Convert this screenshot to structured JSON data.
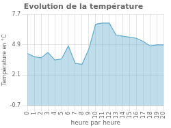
{
  "chart_data": {
    "type": "area",
    "title": "Evolution de la température",
    "x_label": "heure par heure",
    "y_label": "Température en °C",
    "x": [
      0,
      1,
      2,
      3,
      4,
      5,
      6,
      7,
      8,
      9,
      10,
      11,
      12,
      13,
      14,
      15,
      16,
      17,
      18,
      19,
      20
    ],
    "values": [
      4.1,
      3.8,
      3.7,
      4.2,
      3.5,
      3.6,
      4.8,
      3.2,
      3.1,
      4.5,
      6.8,
      6.9,
      6.9,
      5.8,
      5.7,
      5.6,
      5.5,
      5.2,
      4.8,
      4.9,
      4.9
    ],
    "color": "#60aacc",
    "xlim": [
      0,
      20
    ],
    "xticks": [
      0,
      1,
      2,
      3,
      4,
      5,
      6,
      7,
      8,
      9,
      10,
      11,
      12,
      13,
      14,
      15,
      16,
      17,
      18,
      19,
      20
    ],
    "ylim": [
      -0.7,
      7.7
    ],
    "yticks": [
      -0.7,
      2.1,
      4.9,
      7.7
    ],
    "grid": true
  }
}
